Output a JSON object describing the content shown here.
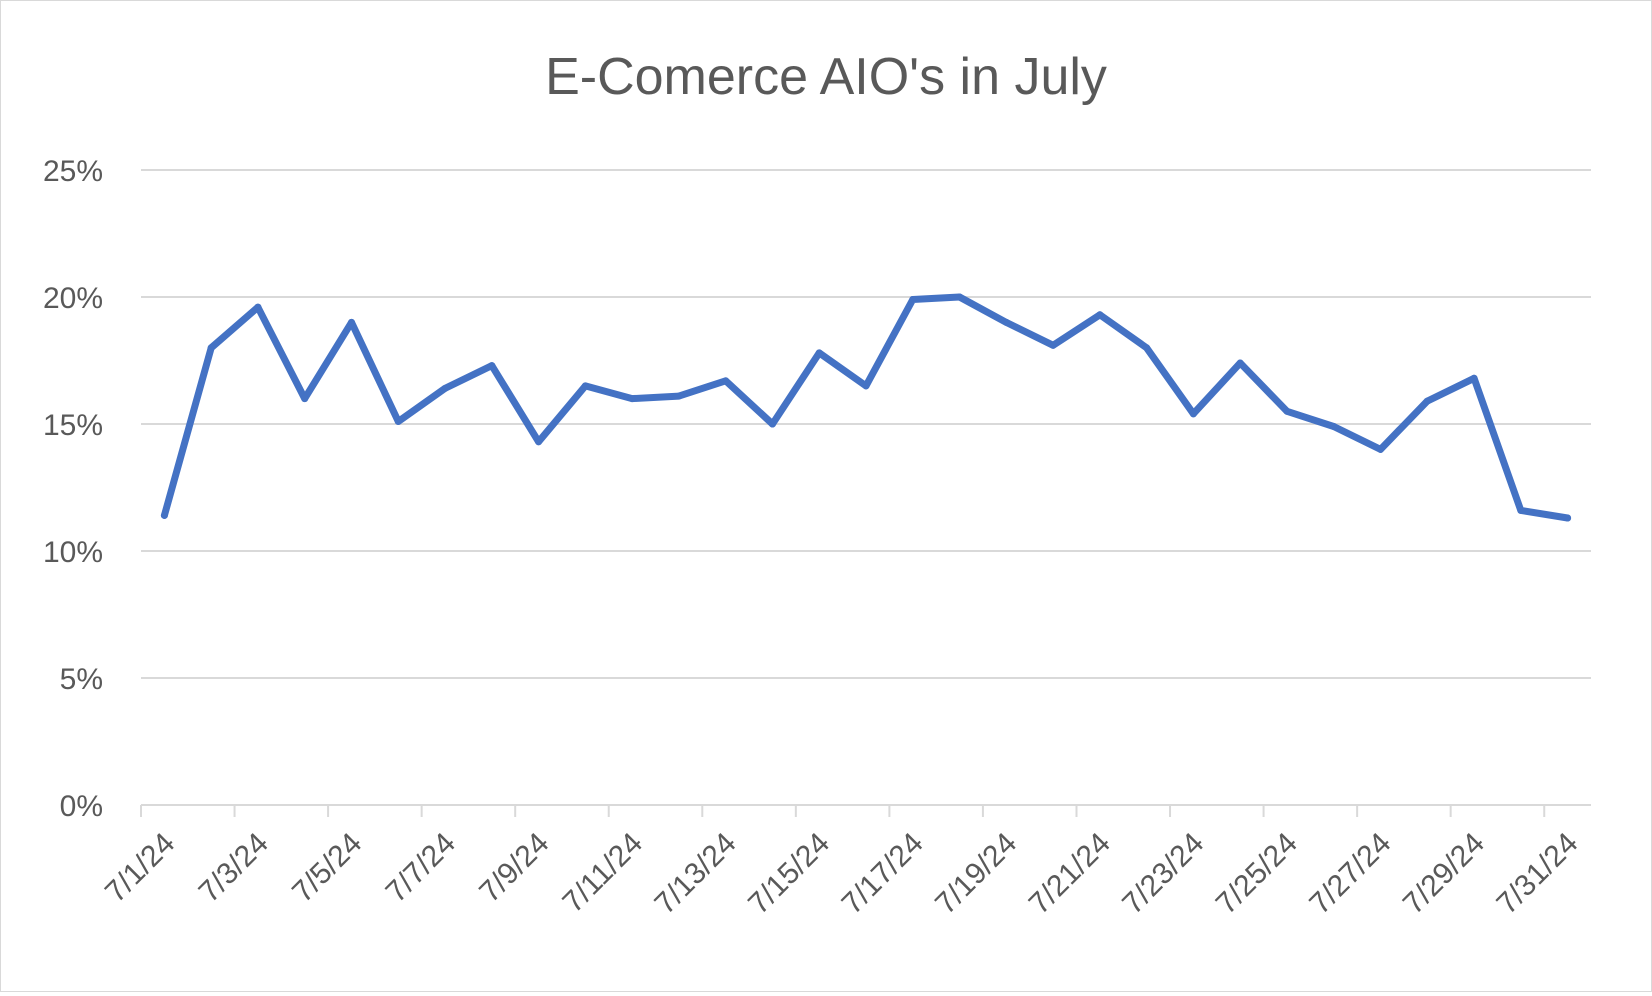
{
  "chart_data": {
    "type": "line",
    "title": "E-Comerce AIO's in July",
    "xlabel": "",
    "ylabel": "",
    "ylim": [
      0,
      0.25
    ],
    "ytick_labels": [
      "0%",
      "5%",
      "10%",
      "15%",
      "20%",
      "25%"
    ],
    "ytick_values": [
      0,
      0.05,
      0.1,
      0.15,
      0.2,
      0.25
    ],
    "x_tick_labels": [
      "7/1/24",
      "7/3/24",
      "7/5/24",
      "7/7/24",
      "7/9/24",
      "7/11/24",
      "7/13/24",
      "7/15/24",
      "7/17/24",
      "7/19/24",
      "7/21/24",
      "7/23/24",
      "7/25/24",
      "7/27/24",
      "7/29/24",
      "7/31/24"
    ],
    "grid": true,
    "legend": "none",
    "categories": [
      "7/1/24",
      "7/2/24",
      "7/3/24",
      "7/4/24",
      "7/5/24",
      "7/6/24",
      "7/7/24",
      "7/8/24",
      "7/9/24",
      "7/10/24",
      "7/11/24",
      "7/12/24",
      "7/13/24",
      "7/14/24",
      "7/15/24",
      "7/16/24",
      "7/17/24",
      "7/18/24",
      "7/19/24",
      "7/20/24",
      "7/21/24",
      "7/22/24",
      "7/23/24",
      "7/24/24",
      "7/25/24",
      "7/26/24",
      "7/27/24",
      "7/28/24",
      "7/29/24",
      "7/30/24",
      "7/31/24"
    ],
    "series": [
      {
        "color": "#4472c4",
        "values": [
          0.114,
          0.18,
          0.196,
          0.16,
          0.19,
          0.151,
          0.164,
          0.173,
          0.143,
          0.165,
          0.16,
          0.161,
          0.167,
          0.15,
          0.178,
          0.165,
          0.199,
          0.2,
          0.19,
          0.181,
          0.193,
          0.18,
          0.154,
          0.174,
          0.155,
          0.149,
          0.14,
          0.159,
          0.168,
          0.116,
          0.113
        ]
      }
    ]
  }
}
